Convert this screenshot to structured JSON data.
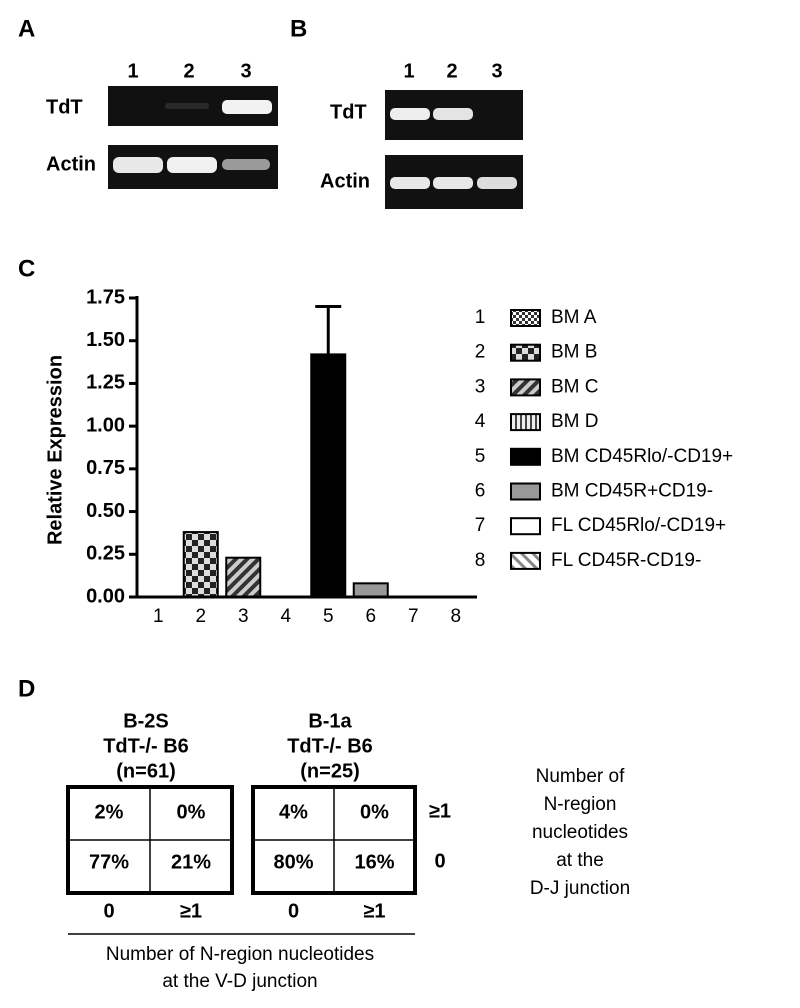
{
  "panel_a": {
    "label": "A",
    "lanes": [
      "1",
      "2",
      "3"
    ],
    "rows": [
      "TdT",
      "Actin"
    ]
  },
  "panel_b": {
    "label": "B",
    "lanes": [
      "1",
      "2",
      "3"
    ],
    "rows": [
      "TdT",
      "Actin"
    ]
  },
  "chart_data": {
    "type": "bar",
    "panel_label": "C",
    "y_label": "Relative Expression",
    "categories": [
      "1",
      "2",
      "3",
      "4",
      "5",
      "6",
      "7",
      "8"
    ],
    "values": [
      0,
      0.38,
      0.23,
      0,
      1.42,
      0.08,
      0,
      0
    ],
    "errors": [
      null,
      null,
      null,
      null,
      0.28,
      null,
      null,
      null
    ],
    "legend": [
      "BM A",
      "BM B",
      "BM C",
      "BM D",
      "BM CD45Rlo/-CD19+",
      "BM CD45R+CD19-",
      "FL CD45Rlo/-CD19+",
      "FL CD45R-CD19-"
    ],
    "ylim": [
      0,
      1.75
    ],
    "yticks": [
      {
        "value": 0,
        "label": "0.00"
      },
      {
        "value": 0.25,
        "label": "0.25"
      },
      {
        "value": 0.5,
        "label": "0.50"
      },
      {
        "value": 0.75,
        "label": "0.75"
      },
      {
        "value": 1,
        "label": "1.00"
      },
      {
        "value": 1.25,
        "label": "1.25"
      },
      {
        "value": 1.5,
        "label": "1.50"
      },
      {
        "value": 1.75,
        "label": "1.75"
      }
    ]
  },
  "panel_d": {
    "label": "D",
    "tables": [
      {
        "header": [
          "B-2S",
          "TdT-/- B6",
          "(n=61)"
        ],
        "cells": [
          [
            "2%",
            "0%"
          ],
          [
            "77%",
            "21%"
          ]
        ],
        "columns": [
          "0",
          "≥1"
        ]
      },
      {
        "header": [
          "B-1a",
          "TdT-/- B6",
          "(n=25)"
        ],
        "cells": [
          [
            "4%",
            "0%"
          ],
          [
            "80%",
            "16%"
          ]
        ],
        "columns": [
          "0",
          "≥1"
        ]
      }
    ],
    "row_labels": [
      "≥1",
      "0"
    ],
    "row_title": [
      "Number of",
      "N-region",
      "nucleotides",
      "at the",
      "D-J junction"
    ],
    "column_title": [
      "Number of N-region nucleotides",
      "at the V-D junction"
    ]
  }
}
